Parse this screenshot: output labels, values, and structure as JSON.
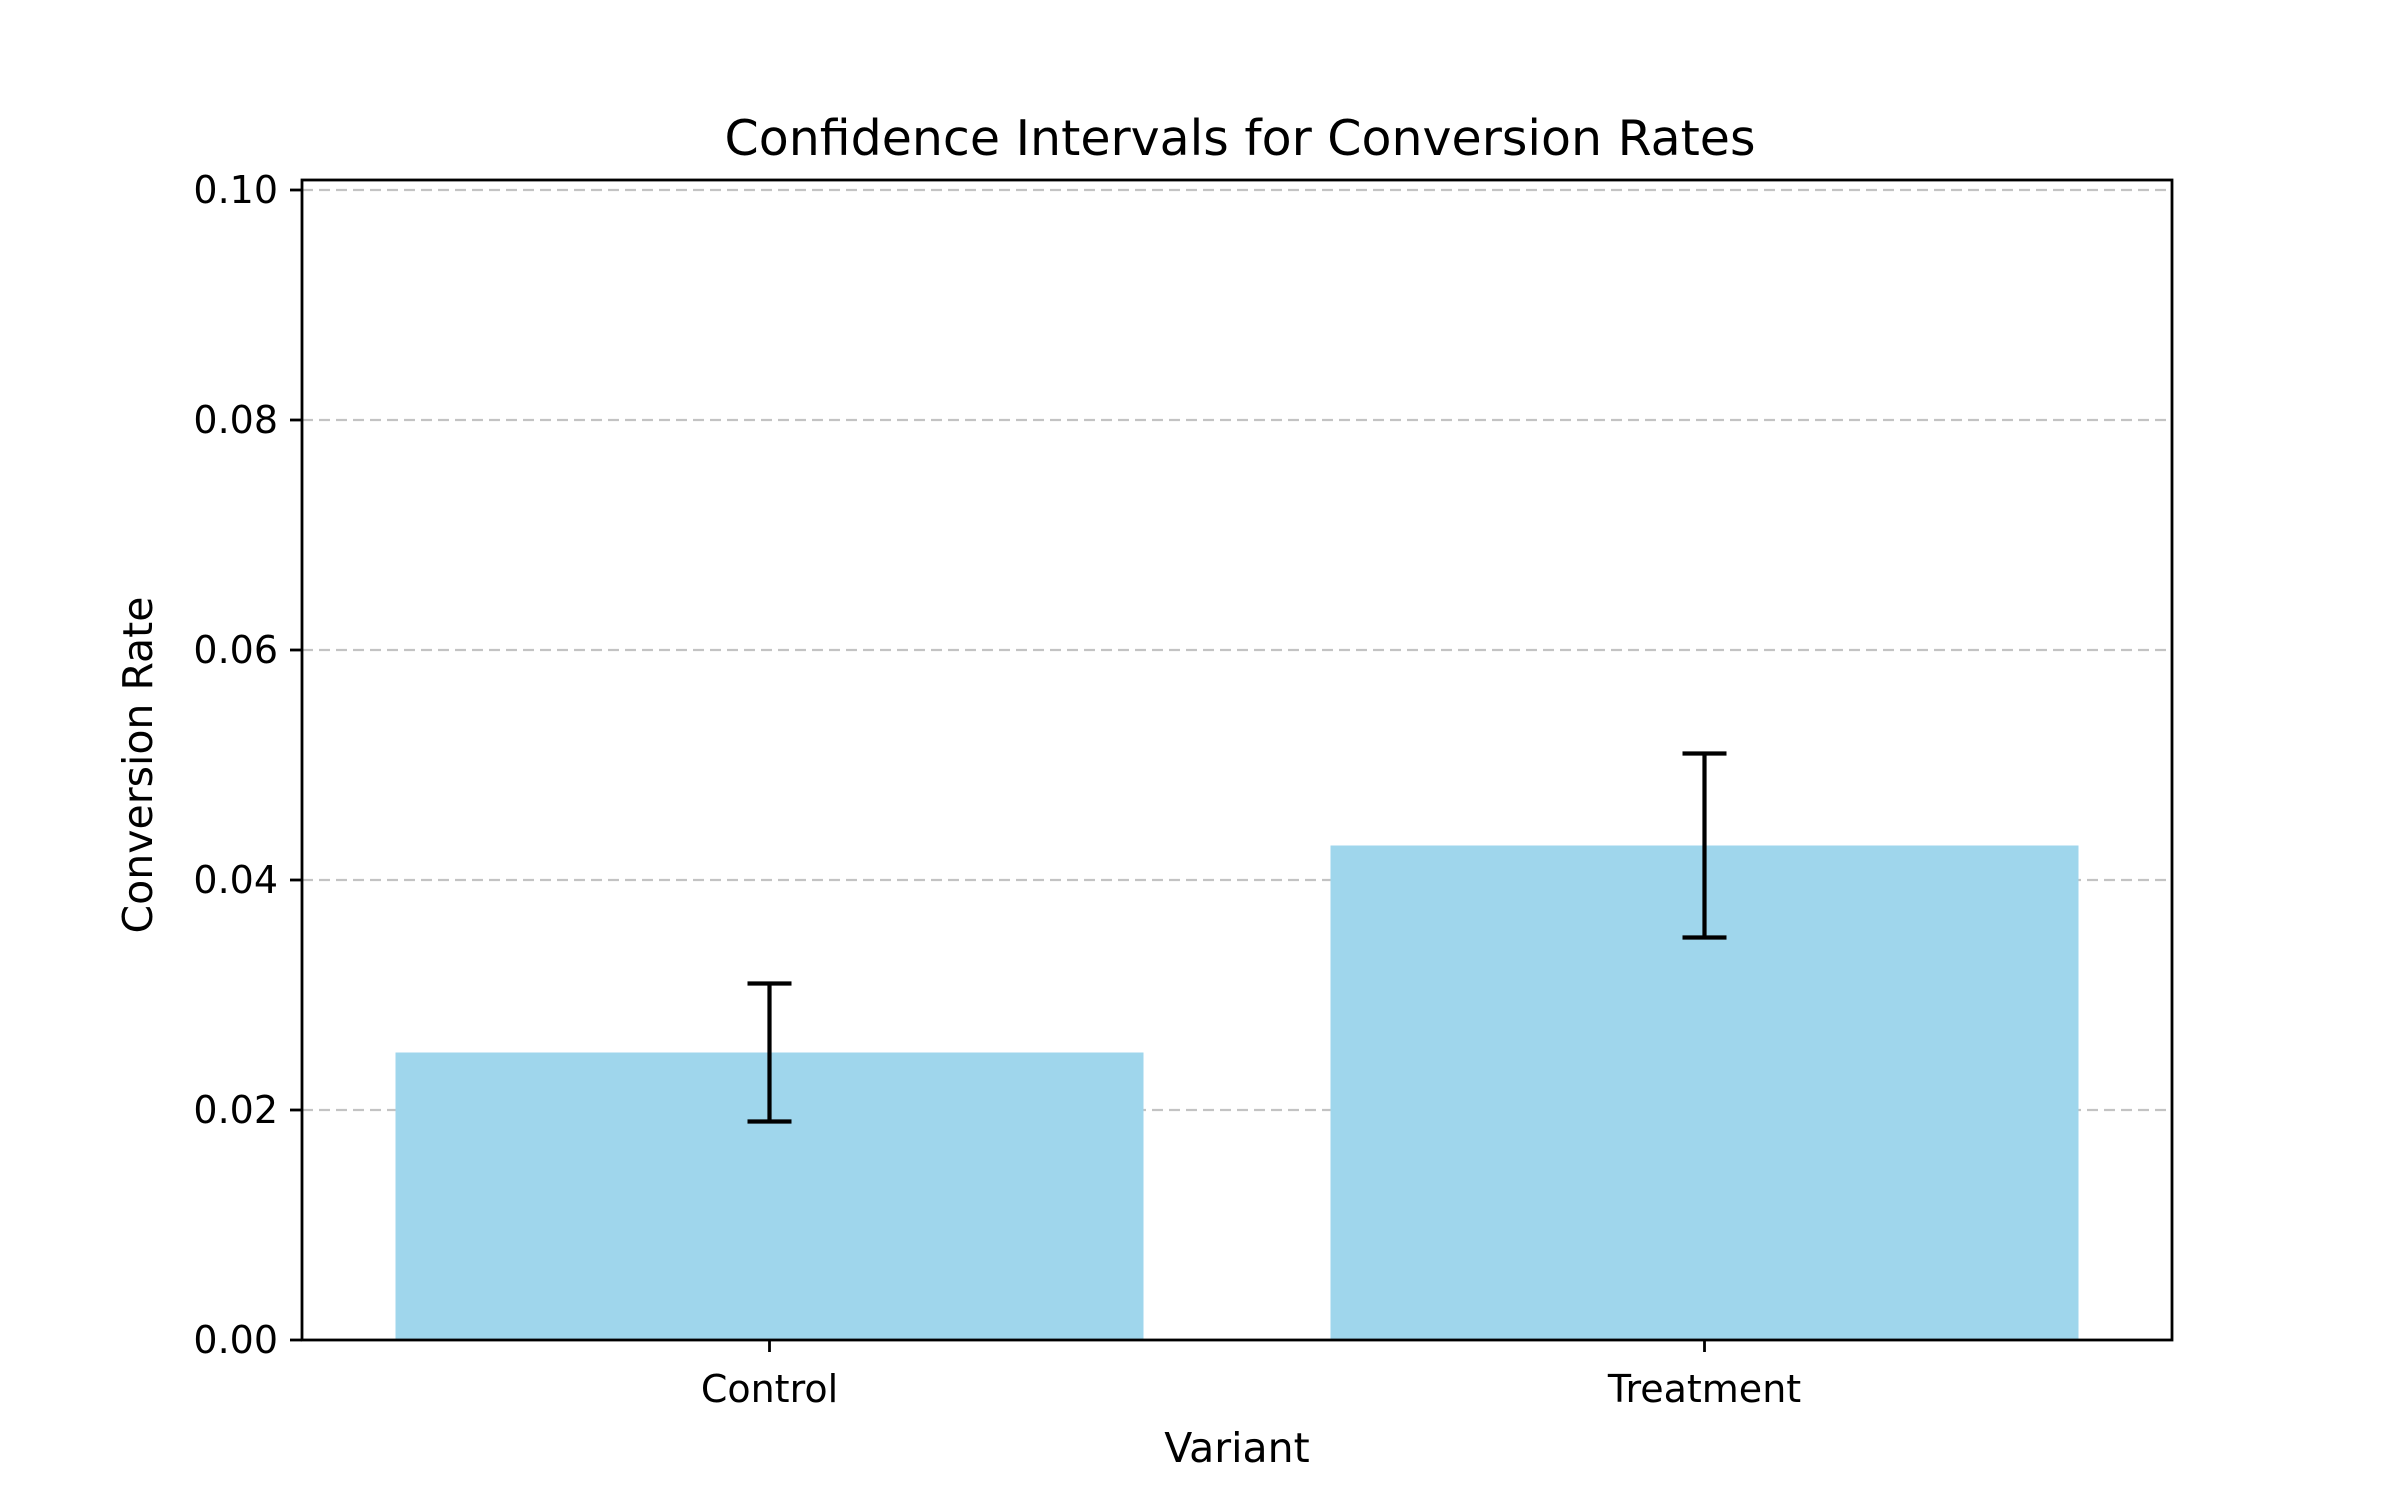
{
  "chart_data": {
    "type": "bar",
    "title": "Confidence Intervals for Conversion Rates",
    "xlabel": "Variant",
    "ylabel": "Conversion Rate",
    "categories": [
      "Control",
      "Treatment"
    ],
    "values": [
      0.025,
      0.043
    ],
    "error_bars": [
      {
        "lower": 0.019,
        "upper": 0.031
      },
      {
        "lower": 0.035,
        "upper": 0.051
      }
    ],
    "ylim": [
      0,
      0.1
    ],
    "yticks": [
      0.0,
      0.02,
      0.04,
      0.06,
      0.08,
      0.1
    ],
    "ytick_labels": [
      "0.00",
      "0.02",
      "0.04",
      "0.06",
      "0.08",
      "0.10"
    ],
    "bar_color": "#9fd6ec",
    "error_color": "#000000",
    "grid": "y-dashed",
    "legend": "none"
  }
}
